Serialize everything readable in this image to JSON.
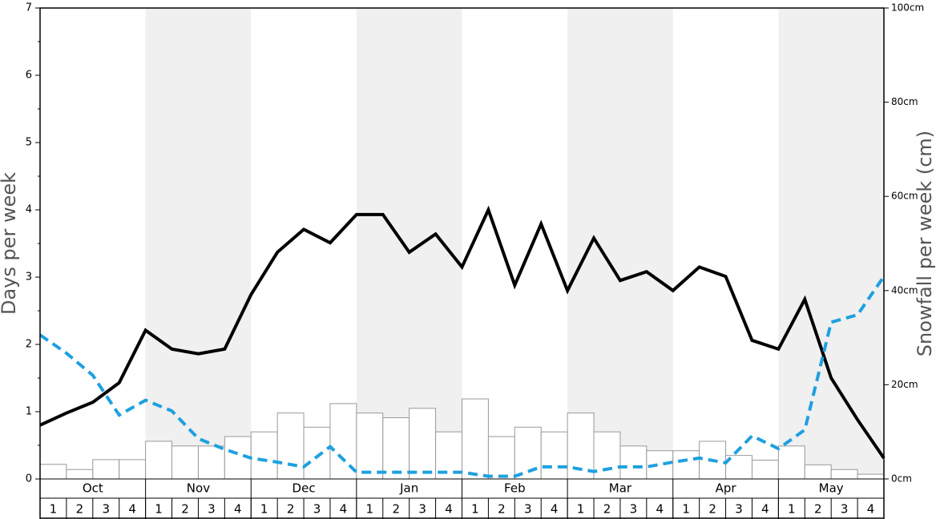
{
  "chart_data": {
    "type": "bar",
    "ylabel": "Days per week",
    "y2label": "Snowfall per week (cm)",
    "months": [
      "Oct",
      "Nov",
      "Dec",
      "Jan",
      "Feb",
      "Mar",
      "Apr",
      "May"
    ],
    "weeks": [
      "1",
      "2",
      "3",
      "4"
    ],
    "ylim": [
      0,
      7
    ],
    "yticks": [
      0,
      1,
      2,
      3,
      4,
      5,
      6,
      7
    ],
    "yminorticks": [
      0.5,
      1.5,
      2.5,
      3.5,
      4.5,
      5.5,
      6.5
    ],
    "y2lim": [
      0,
      100
    ],
    "y2ticks": [
      {
        "value": 0,
        "label": "0cm"
      },
      {
        "value": 20,
        "label": "20cm"
      },
      {
        "value": 40,
        "label": "40cm"
      },
      {
        "value": 60,
        "label": "60cm"
      },
      {
        "value": 80,
        "label": "80cm"
      },
      {
        "value": 100,
        "label": "100cm"
      }
    ],
    "series": [
      {
        "type": "bar",
        "axis": "y2",
        "color": "#ffffff",
        "values": [
          3.1,
          2,
          4.1,
          4.1,
          8,
          7,
          7,
          9,
          10,
          14,
          11,
          16,
          14,
          13,
          15,
          10,
          17,
          9,
          11,
          10,
          14,
          10,
          7,
          6,
          6,
          8,
          5,
          4,
          7,
          3,
          2,
          1
        ]
      },
      {
        "type": "line",
        "color": "#000000",
        "dashed": false,
        "values": [
          0.8,
          0.98,
          1.14,
          1.43,
          2.21,
          1.93,
          1.86,
          1.93,
          2.74,
          3.37,
          3.71,
          3.51,
          3.93,
          3.93,
          3.37,
          3.64,
          3.15,
          4.0,
          2.88,
          3.79,
          2.8,
          3.58,
          2.95,
          3.08,
          2.8,
          3.15,
          3.01,
          2.06,
          1.93,
          2.67,
          1.5,
          0.88,
          0.31
        ]
      },
      {
        "type": "line",
        "color": "#1ea0e0",
        "dashed": true,
        "values": [
          2.14,
          1.87,
          1.54,
          0.95,
          1.17,
          1.01,
          0.6,
          0.44,
          0.31,
          0.25,
          0.18,
          0.48,
          0.1,
          0.1,
          0.1,
          0.1,
          0.1,
          0.04,
          0.04,
          0.18,
          0.18,
          0.11,
          0.18,
          0.18,
          0.25,
          0.31,
          0.24,
          0.64,
          0.45,
          0.73,
          2.33,
          2.44,
          3.01
        ]
      }
    ]
  }
}
